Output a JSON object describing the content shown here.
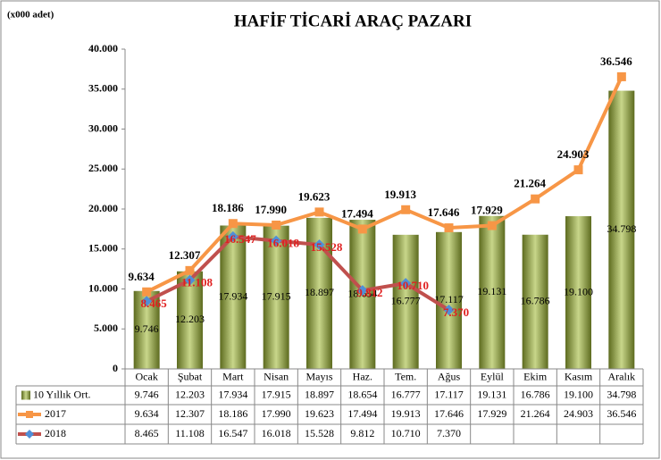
{
  "chart_data": {
    "type": "bar_line",
    "title": "HAFİF TİCARİ ARAÇ PAZARI",
    "y_label": "(x000 adet)",
    "categories": [
      "Ocak",
      "Şubat",
      "Mart",
      "Nisan",
      "Mayıs",
      "Haz.",
      "Tem.",
      "Ağus",
      "Eylül",
      "Ekim",
      "Kasım",
      "Aralık"
    ],
    "series": [
      {
        "name": "10 Yıllık Ort.",
        "type": "bar",
        "color": "#93a63f",
        "values": [
          9746,
          12203,
          17934,
          17915,
          18897,
          18654,
          16777,
          17117,
          19131,
          16786,
          19100,
          34798
        ],
        "value_labels": [
          "9.746",
          "12.203",
          "17.934",
          "17.915",
          "18.897",
          "18.654",
          "16.777",
          "17.117",
          "19.131",
          "16.786",
          "19.100",
          "34.798"
        ]
      },
      {
        "name": "2017",
        "type": "line",
        "color": "#f79646",
        "label_color": "#000000",
        "values": [
          9634,
          12307,
          18186,
          17990,
          19623,
          17494,
          19913,
          17646,
          17929,
          21264,
          24903,
          36546
        ],
        "value_labels": [
          "9.634",
          "12.307",
          "18.186",
          "17.990",
          "19.623",
          "17.494",
          "19.913",
          "17.646",
          "17.929",
          "21.264",
          "24.903",
          "36.546"
        ]
      },
      {
        "name": "2018",
        "type": "line",
        "color": "#c0504d",
        "marker_color": "#4f8fd8",
        "label_color": "#e02020",
        "values": [
          8465,
          11108,
          16547,
          16018,
          15528,
          9812,
          10710,
          7370,
          null,
          null,
          null,
          null
        ],
        "value_labels": [
          "8.465",
          "11.108",
          "16.547",
          "16.018",
          "15.528",
          "9.812",
          "10.710",
          "7.370",
          null,
          null,
          null,
          null
        ]
      }
    ],
    "ylim": [
      0,
      40000
    ],
    "yticks": [
      0,
      {
        "value": 5000,
        "label": "5.000"
      },
      {
        "value": 10000,
        "label": "10.000"
      },
      {
        "value": 15000,
        "label": "15.000"
      },
      {
        "value": 20000,
        "label": "20.000"
      },
      {
        "value": 25000,
        "label": "25.000"
      },
      {
        "value": 30000,
        "label": "30.000"
      },
      {
        "value": 35000,
        "label": "35.000"
      },
      {
        "value": 40000,
        "label": "40.000"
      }
    ],
    "grid": false
  }
}
